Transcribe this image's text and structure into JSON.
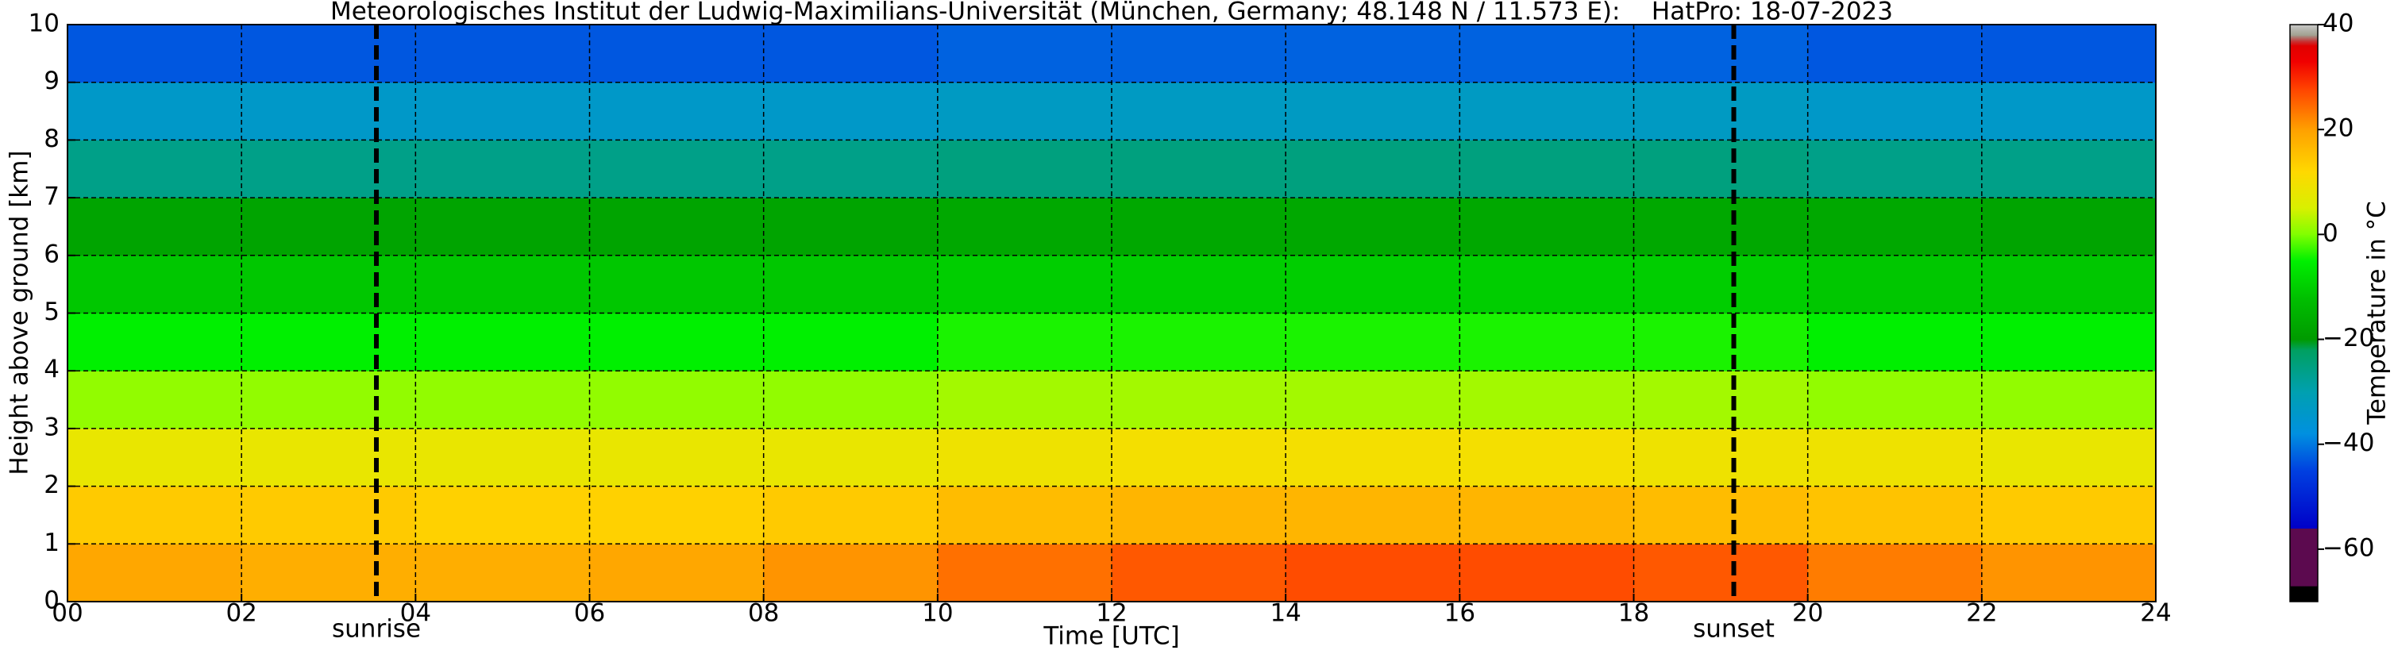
{
  "chart_data": {
    "type": "heatmap",
    "title": "Meteorologisches Institut der Ludwig-Maximilians-Universität (München, Germany; 48.148 N / 11.573 E):    HatPro: 18-07-2023",
    "x_label": "Time [UTC]",
    "y_label": "Height above ground [km]",
    "colorbar_label": "Temperature in °C",
    "x": [
      0,
      2,
      4,
      6,
      8,
      10,
      12,
      14,
      16,
      18,
      20,
      22
    ],
    "y": [
      0,
      1,
      2,
      3,
      4,
      5,
      6,
      7,
      8,
      9
    ],
    "values": [
      [
        19,
        18,
        18,
        19,
        21,
        24,
        26,
        27,
        27,
        26,
        23,
        21
      ],
      [
        14,
        14,
        13,
        13,
        14,
        16,
        17,
        17,
        17,
        16,
        15,
        14
      ],
      [
        8,
        8,
        8,
        8,
        8,
        9,
        10,
        10,
        10,
        9,
        9,
        8
      ],
      [
        1,
        1,
        1,
        1,
        1,
        2,
        2,
        2,
        2,
        2,
        1,
        1
      ],
      [
        -5,
        -5,
        -5,
        -5,
        -5,
        -4,
        -4,
        -4,
        -4,
        -4,
        -5,
        -5
      ],
      [
        -11,
        -11,
        -11,
        -11,
        -11,
        -10,
        -10,
        -10,
        -10,
        -10,
        -11,
        -11
      ],
      [
        -18,
        -18,
        -18,
        -18,
        -18,
        -17,
        -17,
        -17,
        -17,
        -17,
        -17,
        -18
      ],
      [
        -26,
        -26,
        -26,
        -26,
        -26,
        -25,
        -25,
        -25,
        -25,
        -25,
        -26,
        -26
      ],
      [
        -34,
        -34,
        -34,
        -34,
        -34,
        -33,
        -33,
        -33,
        -33,
        -33,
        -34,
        -34
      ],
      [
        -43,
        -43,
        -43,
        -43,
        -43,
        -42,
        -42,
        -42,
        -42,
        -42,
        -43,
        -43
      ]
    ],
    "xlim": [
      0,
      24
    ],
    "ylim": [
      0,
      10
    ],
    "xticks": [
      {
        "value": 0,
        "label": "00"
      },
      {
        "value": 2,
        "label": "02"
      },
      {
        "value": 4,
        "label": "04"
      },
      {
        "value": 6,
        "label": "06"
      },
      {
        "value": 8,
        "label": "08"
      },
      10,
      12,
      14,
      16,
      18,
      20,
      22,
      24
    ],
    "yticks": [
      0,
      1,
      2,
      3,
      4,
      5,
      6,
      7,
      8,
      9,
      10
    ],
    "grid": true,
    "clim": [
      -70,
      40
    ],
    "cticks": [
      {
        "value": -60,
        "label": "−60"
      },
      {
        "value": -40,
        "label": "−40"
      },
      {
        "value": -20,
        "label": "−20"
      },
      0,
      20,
      40
    ],
    "colormap": [
      [
        -70,
        "#000000"
      ],
      [
        -67,
        "#000000"
      ],
      [
        -67,
        "#5c0a4f"
      ],
      [
        -56,
        "#5c0a4f"
      ],
      [
        -56,
        "#0000c8"
      ],
      [
        -45,
        "#0040e0"
      ],
      [
        -38,
        "#0090e0"
      ],
      [
        -30,
        "#00a0b0"
      ],
      [
        -22,
        "#00a060"
      ],
      [
        -20,
        "#009a00"
      ],
      [
        -12,
        "#00c000"
      ],
      [
        -5,
        "#00f000"
      ],
      [
        0,
        "#80ff00"
      ],
      [
        5,
        "#d8f000"
      ],
      [
        12,
        "#ffd800"
      ],
      [
        20,
        "#ffa000"
      ],
      [
        28,
        "#ff4000"
      ],
      [
        33,
        "#f00000"
      ],
      [
        36,
        "#e00000"
      ],
      [
        37,
        "#c04040"
      ],
      [
        38,
        "#a0a090"
      ],
      [
        40,
        "#c8c8c8"
      ]
    ],
    "annotations": [
      {
        "x": 3.55,
        "text": "sunrise"
      },
      {
        "x": 19.15,
        "text": "sunset"
      }
    ]
  }
}
